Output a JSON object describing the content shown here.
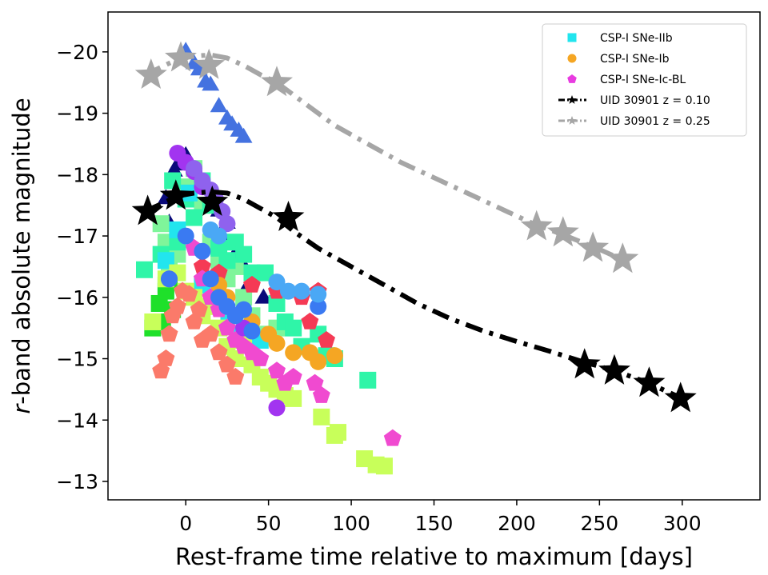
{
  "chart_data": {
    "type": "scatter",
    "title": "",
    "xlabel": "Rest-frame time relative to maximum [days]",
    "ylabel_italic": "r",
    "ylabel_rest": "-band absolute magnitude",
    "xlim": [
      -47,
      347
    ],
    "ylim": [
      -12.7,
      -20.65
    ],
    "y_inverted": true,
    "grid": false,
    "legend_position": "top-right",
    "x_ticks": [
      0,
      50,
      100,
      150,
      200,
      250,
      300
    ],
    "x_tick_labels": [
      "0",
      "50",
      "100",
      "150",
      "200",
      "250",
      "300"
    ],
    "y_ticks": [
      -20,
      -19,
      -18,
      -17,
      -16,
      -15,
      -14,
      -13
    ],
    "y_tick_labels": [
      "−20",
      "−19",
      "−18",
      "−17",
      "−16",
      "−15",
      "−14",
      "−13"
    ],
    "legend": [
      {
        "label": "CSP-I SNe-IIb",
        "marker": "square",
        "color": "#22e5ee"
      },
      {
        "label": "CSP-I SNe-Ib",
        "marker": "circle",
        "color": "#f5a623"
      },
      {
        "label": "CSP-I SNe-Ic-BL",
        "marker": "pentagon",
        "color": "#e83ce0"
      },
      {
        "label": "UID 30901 z = 0.10",
        "marker": "star",
        "color": "#000000",
        "line": "dashdot"
      },
      {
        "label": "UID 30901 z = 0.25",
        "marker": "star",
        "color": "#a6a6a6",
        "line": "dashdot"
      }
    ],
    "series": [
      {
        "name": "UID 30901 z = 0.10",
        "color": "#000000",
        "curve": [
          [
            -25,
            -17.4
          ],
          [
            -15,
            -17.52
          ],
          [
            -5,
            -17.65
          ],
          [
            5,
            -17.7
          ],
          [
            15,
            -17.72
          ],
          [
            25,
            -17.7
          ],
          [
            35,
            -17.6
          ],
          [
            45,
            -17.45
          ],
          [
            55,
            -17.3
          ],
          [
            65,
            -17.08
          ],
          [
            80,
            -16.8
          ],
          [
            100,
            -16.5
          ],
          [
            120,
            -16.2
          ],
          [
            140,
            -15.9
          ],
          [
            160,
            -15.65
          ],
          [
            180,
            -15.45
          ],
          [
            200,
            -15.28
          ],
          [
            220,
            -15.12
          ],
          [
            240,
            -14.95
          ],
          [
            260,
            -14.8
          ],
          [
            280,
            -14.6
          ],
          [
            300,
            -14.35
          ]
        ],
        "points": [
          [
            -23,
            -17.4
          ],
          [
            -6,
            -17.65
          ],
          [
            16,
            -17.55
          ],
          [
            62,
            -17.3
          ],
          [
            241,
            -14.9
          ],
          [
            259,
            -14.8
          ],
          [
            280,
            -14.6
          ],
          [
            299,
            -14.35
          ]
        ]
      },
      {
        "name": "UID 30901 z = 0.25",
        "color": "#a6a6a6",
        "curve": [
          [
            -25,
            -19.62
          ],
          [
            -15,
            -19.75
          ],
          [
            -5,
            -19.88
          ],
          [
            5,
            -19.93
          ],
          [
            15,
            -19.95
          ],
          [
            25,
            -19.9
          ],
          [
            35,
            -19.78
          ],
          [
            45,
            -19.63
          ],
          [
            55,
            -19.5
          ],
          [
            70,
            -19.2
          ],
          [
            90,
            -18.8
          ],
          [
            110,
            -18.5
          ],
          [
            130,
            -18.2
          ],
          [
            150,
            -17.95
          ],
          [
            170,
            -17.7
          ],
          [
            190,
            -17.45
          ],
          [
            210,
            -17.2
          ],
          [
            230,
            -17
          ],
          [
            250,
            -16.78
          ],
          [
            265,
            -16.6
          ]
        ],
        "points": [
          [
            -21,
            -19.62
          ],
          [
            -3,
            -19.9
          ],
          [
            14,
            -19.78
          ],
          [
            55,
            -19.5
          ],
          [
            212,
            -17.15
          ],
          [
            228,
            -17.05
          ],
          [
            246,
            -16.8
          ],
          [
            264,
            -16.62
          ]
        ]
      }
    ],
    "csp_sample": [
      {
        "group": "royalblue-triangles",
        "marker": "triangle",
        "color": "#4472e0",
        "points": [
          [
            0,
            -20
          ],
          [
            5,
            -19.8
          ],
          [
            8,
            -19.7
          ],
          [
            12,
            -19.5
          ],
          [
            15,
            -19.45
          ],
          [
            20,
            -19.1
          ],
          [
            25,
            -18.9
          ],
          [
            28,
            -18.8
          ],
          [
            32,
            -18.7
          ],
          [
            35,
            -18.6
          ]
        ]
      },
      {
        "group": "navy-triangles",
        "marker": "triangle",
        "color": "#0a0a7a",
        "points": [
          [
            -12,
            -17.6
          ],
          [
            -10,
            -17.2
          ],
          [
            -7,
            -18.05
          ],
          [
            -5,
            -18.15
          ],
          [
            0,
            -18.3
          ],
          [
            5,
            -17.9
          ],
          [
            20,
            -17.4
          ],
          [
            22,
            -17
          ],
          [
            25,
            -17.2
          ],
          [
            30,
            -16.7
          ],
          [
            35,
            -16.5
          ],
          [
            38,
            -16.2
          ],
          [
            47,
            -15.98
          ]
        ]
      },
      {
        "group": "lightgreen-squares",
        "marker": "square",
        "color": "#7ff59a",
        "points": [
          [
            -15,
            -17.2
          ],
          [
            -12,
            -16.9
          ],
          [
            -10,
            -16.5
          ],
          [
            -5,
            -16.7
          ],
          [
            0,
            -17.8
          ],
          [
            5,
            -18.1
          ],
          [
            10,
            -17.5
          ],
          [
            15,
            -16.9
          ],
          [
            20,
            -16.6
          ],
          [
            25,
            -16.3
          ],
          [
            30,
            -16.5
          ],
          [
            35,
            -16
          ],
          [
            40,
            -15.7
          ],
          [
            45,
            -15.4
          ],
          [
            55,
            -15.5
          ]
        ]
      },
      {
        "group": "seagreen-squares",
        "marker": "square",
        "color": "#2ff5a8",
        "points": [
          [
            -25,
            -16.45
          ],
          [
            -15,
            -16.7
          ],
          [
            -12,
            -16.2
          ],
          [
            -8,
            -17.9
          ],
          [
            -5,
            -16.9
          ],
          [
            0,
            -17.6
          ],
          [
            5,
            -17.3
          ],
          [
            10,
            -17.9
          ],
          [
            15,
            -17.5
          ],
          [
            20,
            -16.8
          ],
          [
            25,
            -16.6
          ],
          [
            30,
            -16.9
          ],
          [
            35,
            -16.7
          ],
          [
            40,
            -16.4
          ],
          [
            48,
            -16.4
          ],
          [
            55,
            -15.9
          ],
          [
            60,
            -15.6
          ],
          [
            65,
            -15.5
          ],
          [
            70,
            -15.2
          ],
          [
            80,
            -15.4
          ],
          [
            85,
            -15.05
          ],
          [
            90,
            -15
          ],
          [
            110,
            -14.65
          ]
        ]
      },
      {
        "group": "cyan-squares",
        "marker": "square",
        "color": "#22e5ee",
        "points": [
          [
            -12,
            -16.6
          ],
          [
            -5,
            -17.1
          ],
          [
            2,
            -17.7
          ],
          [
            10,
            -16.2
          ],
          [
            18,
            -15.9
          ],
          [
            26,
            -15.7
          ],
          [
            34,
            -15.4
          ],
          [
            45,
            -15.3
          ]
        ]
      },
      {
        "group": "green-squares",
        "marker": "square",
        "color": "#1fe02a",
        "points": [
          [
            -16,
            -15.9
          ],
          [
            -14,
            -15.6
          ],
          [
            -12,
            -16.1
          ],
          [
            -10,
            -16.25
          ],
          [
            -8,
            -15.8
          ],
          [
            -20,
            -15.5
          ]
        ]
      },
      {
        "group": "lime-squares",
        "marker": "square",
        "color": "#c8ff5a",
        "points": [
          [
            -20,
            -15.6
          ],
          [
            -12,
            -16.3
          ],
          [
            -5,
            -16.4
          ],
          [
            0,
            -16.1
          ],
          [
            5,
            -16
          ],
          [
            10,
            -15.7
          ],
          [
            15,
            -15.85
          ],
          [
            20,
            -15.5
          ],
          [
            25,
            -15.2
          ],
          [
            30,
            -15
          ],
          [
            35,
            -15.3
          ],
          [
            40,
            -14.9
          ],
          [
            45,
            -14.7
          ],
          [
            50,
            -14.6
          ],
          [
            55,
            -14.5
          ],
          [
            60,
            -14.4
          ],
          [
            65,
            -14.35
          ],
          [
            82,
            -14.05
          ],
          [
            90,
            -13.75
          ],
          [
            92,
            -13.8
          ],
          [
            108,
            -13.37
          ],
          [
            115,
            -13.27
          ],
          [
            120,
            -13.25
          ]
        ]
      },
      {
        "group": "salmon-pentagons",
        "marker": "pentagon",
        "color": "#fb7a6a",
        "points": [
          [
            -15,
            -14.8
          ],
          [
            -12,
            -15
          ],
          [
            -10,
            -15.4
          ],
          [
            -8,
            -15.7
          ],
          [
            -5,
            -15.85
          ],
          [
            -2,
            -16.1
          ],
          [
            2,
            -16.05
          ],
          [
            5,
            -15.6
          ],
          [
            8,
            -15.8
          ],
          [
            10,
            -15.3
          ],
          [
            15,
            -15.4
          ],
          [
            20,
            -15.1
          ],
          [
            25,
            -14.9
          ],
          [
            30,
            -14.7
          ]
        ]
      },
      {
        "group": "crimson-pentagons",
        "marker": "pentagon",
        "color": "#f53a55",
        "points": [
          [
            10,
            -16.5
          ],
          [
            20,
            -16.4
          ],
          [
            40,
            -16.2
          ],
          [
            55,
            -16.1
          ],
          [
            70,
            -16
          ],
          [
            75,
            -15.6
          ],
          [
            80,
            -16.1
          ],
          [
            85,
            -15.3
          ]
        ]
      },
      {
        "group": "magenta-pentagons",
        "marker": "pentagon",
        "color": "#f04ad0",
        "points": [
          [
            5,
            -16.8
          ],
          [
            10,
            -16.3
          ],
          [
            15,
            -16
          ],
          [
            20,
            -15.8
          ],
          [
            25,
            -15.5
          ],
          [
            30,
            -15.3
          ],
          [
            35,
            -15.2
          ],
          [
            40,
            -15.1
          ],
          [
            45,
            -15
          ],
          [
            55,
            -14.8
          ],
          [
            60,
            -14.6
          ],
          [
            65,
            -14.7
          ],
          [
            78,
            -14.6
          ],
          [
            82,
            -14.4
          ],
          [
            125,
            -13.7
          ]
        ]
      },
      {
        "group": "orange-circles",
        "marker": "circle",
        "color": "#f5a623",
        "points": [
          [
            20,
            -16.2
          ],
          [
            25,
            -16
          ],
          [
            30,
            -15.7
          ],
          [
            40,
            -15.6
          ],
          [
            50,
            -15.4
          ],
          [
            55,
            -15.25
          ],
          [
            65,
            -15.1
          ],
          [
            75,
            -15.1
          ],
          [
            80,
            -14.95
          ],
          [
            90,
            -15.05
          ]
        ]
      },
      {
        "group": "purple-circles",
        "marker": "circle",
        "color": "#a234f0",
        "points": [
          [
            -5,
            -18.35
          ],
          [
            0,
            -18.2
          ],
          [
            5,
            -18.05
          ],
          [
            10,
            -17.8
          ],
          [
            -10,
            -16.3
          ],
          [
            35,
            -15.5
          ],
          [
            55,
            -14.2
          ]
        ]
      },
      {
        "group": "violet-circles",
        "marker": "circle",
        "color": "#8f62ee",
        "points": [
          [
            5,
            -18.1
          ],
          [
            10,
            -17.9
          ],
          [
            15,
            -17.75
          ],
          [
            18,
            -17.6
          ],
          [
            22,
            -17.4
          ],
          [
            25,
            -17.2
          ]
        ]
      },
      {
        "group": "blue-circles",
        "marker": "circle",
        "color": "#3a7af2",
        "points": [
          [
            -10,
            -16.3
          ],
          [
            0,
            -17
          ],
          [
            10,
            -16.75
          ],
          [
            15,
            -16.3
          ],
          [
            20,
            -16
          ],
          [
            25,
            -15.85
          ],
          [
            30,
            -15.7
          ],
          [
            35,
            -15.8
          ],
          [
            40,
            -15.45
          ],
          [
            80,
            -15.85
          ]
        ]
      },
      {
        "group": "skyblue-circles",
        "marker": "circle",
        "color": "#4aa8f5",
        "points": [
          [
            15,
            -17.1
          ],
          [
            20,
            -17
          ],
          [
            55,
            -16.25
          ],
          [
            62,
            -16.1
          ],
          [
            70,
            -16.1
          ],
          [
            80,
            -16.05
          ]
        ]
      }
    ]
  }
}
